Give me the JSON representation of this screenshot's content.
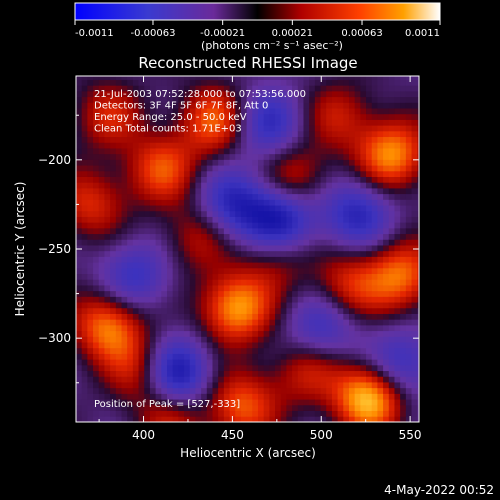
{
  "colorbar": {
    "ticks": [
      "-0.0011",
      "-0.00063",
      "-0.00021",
      "0.00021",
      "0.00063",
      "0.0011"
    ],
    "tick_values": [
      -0.0011,
      -0.00063,
      -0.00021,
      0.00021,
      0.00063,
      0.0011
    ],
    "range": [
      -0.0011,
      0.0011
    ],
    "unit_label": "(photons cm⁻² s⁻¹ asec⁻²)",
    "colors": [
      "#0000ff",
      "#4040c0",
      "#7030a0",
      "#000000",
      "#b00000",
      "#ff4000",
      "#ffa000",
      "#ffffff"
    ]
  },
  "chart_data": {
    "type": "heatmap",
    "title": "Reconstructed RHESSI Image",
    "xlabel": "Heliocentric X (arcsec)",
    "ylabel": "Heliocentric Y (arcsec)",
    "xlim": [
      362,
      555
    ],
    "ylim": [
      -347,
      -153
    ],
    "x_ticks": [
      400,
      450,
      500,
      550
    ],
    "y_ticks": [
      -200,
      -250,
      -300
    ],
    "info_lines": [
      "21-Jul-2003 07:52:28.000 to 07:53:56.000",
      "Detectors: 3F 4F 5F 6F 7F 8F, Att 0",
      "Energy Range: 25.0 - 50.0 keV",
      "Clean    Total counts: 1.71E+03"
    ],
    "peak_label": "Position of Peak = [527,-333]",
    "peak": [
      527,
      -333
    ],
    "sources": [
      {
        "x": 527,
        "y": -333,
        "level": 1.0
      },
      {
        "x": 452,
        "y": -283,
        "level": 0.85
      },
      {
        "x": 540,
        "y": -197,
        "level": 0.8
      },
      {
        "x": 380,
        "y": -293,
        "level": 0.75
      },
      {
        "x": 545,
        "y": -265,
        "level": 0.7
      },
      {
        "x": 440,
        "y": -178,
        "level": 0.65
      },
      {
        "x": 410,
        "y": -205,
        "level": 0.6
      },
      {
        "x": 370,
        "y": -225,
        "level": 0.5
      },
      {
        "x": 485,
        "y": -210,
        "level": 0.5
      },
      {
        "x": 515,
        "y": -270,
        "level": 0.5
      },
      {
        "x": 400,
        "y": -318,
        "level": 0.55
      },
      {
        "x": 455,
        "y": -338,
        "level": 0.65
      },
      {
        "x": 492,
        "y": -318,
        "level": 0.45
      },
      {
        "x": 430,
        "y": -243,
        "level": 0.4
      },
      {
        "x": 380,
        "y": -175,
        "level": 0.45
      },
      {
        "x": 475,
        "y": -255,
        "level": 0.35
      },
      {
        "x": 510,
        "y": -175,
        "level": 0.4
      },
      {
        "x": 415,
        "y": -345,
        "level": 0.45
      }
    ],
    "minima": [
      {
        "x": 417,
        "y": -320,
        "level": -0.9
      },
      {
        "x": 477,
        "y": -233,
        "level": -0.8
      },
      {
        "x": 450,
        "y": -225,
        "level": -0.6
      },
      {
        "x": 520,
        "y": -230,
        "level": -0.6
      },
      {
        "x": 500,
        "y": -295,
        "level": -0.5
      },
      {
        "x": 545,
        "y": -315,
        "level": -0.55
      },
      {
        "x": 470,
        "y": -180,
        "level": -0.55
      },
      {
        "x": 395,
        "y": -265,
        "level": -0.5
      }
    ]
  },
  "footer": {
    "date": "4-May-2022 00:52"
  }
}
